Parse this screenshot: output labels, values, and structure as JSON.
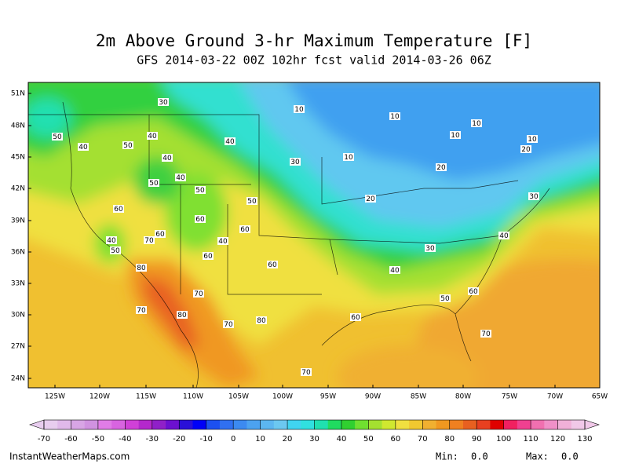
{
  "header": {
    "title": "2m Above Ground 3-hr Maximum Temperature [F]",
    "subtitle": "GFS 2014-03-22 00Z 102hr fcst valid 2014-03-26 06Z"
  },
  "map": {
    "lat_labels": [
      "51N",
      "48N",
      "45N",
      "42N",
      "39N",
      "36N",
      "33N",
      "30N",
      "27N",
      "24N"
    ],
    "lon_labels": [
      "125W",
      "120W",
      "115W",
      "110W",
      "105W",
      "100W",
      "95W",
      "90W",
      "85W",
      "80W",
      "75W",
      "70W",
      "65W"
    ],
    "contour_labels": [
      30,
      10,
      10,
      10,
      10,
      10,
      20,
      50,
      40,
      50,
      40,
      40,
      40,
      30,
      10,
      20,
      50,
      40,
      50,
      50,
      20,
      30,
      60,
      60,
      60,
      70,
      40,
      50,
      40,
      60,
      40,
      30,
      60,
      80,
      60,
      40,
      70,
      50,
      60,
      70,
      80,
      70,
      80,
      60,
      70,
      70
    ]
  },
  "colorbar": {
    "ticks": [
      -70,
      -60,
      -50,
      -40,
      -30,
      -20,
      -10,
      0,
      10,
      20,
      30,
      40,
      50,
      60,
      70,
      80,
      90,
      100,
      110,
      120,
      130
    ],
    "colors": [
      "#e8cdef",
      "#e0b9ea",
      "#d8a5e5",
      "#d092e0",
      "#e07ce6",
      "#d864e0",
      "#d040d8",
      "#b428cc",
      "#9020c8",
      "#6c10d0",
      "#2a10d8",
      "#0000f8",
      "#1c50f0",
      "#3070f0",
      "#3c8af0",
      "#4ca2f0",
      "#5cb6f0",
      "#6cc8f0",
      "#40d4f0",
      "#30e0e0",
      "#20e0b0",
      "#20dc60",
      "#30d030",
      "#70e030",
      "#a4e030",
      "#d0e830",
      "#f0e040",
      "#f0c830",
      "#f0b030",
      "#f09820",
      "#f08020",
      "#e86020",
      "#e84020",
      "#e00000",
      "#f02060",
      "#f04090",
      "#f070b0",
      "#f090c8",
      "#f0b0d8",
      "#f0c8e8"
    ]
  },
  "footer": {
    "site": "InstantWeatherMaps.com",
    "min_label": "Min:",
    "min_value": "0.0",
    "max_label": "Max:",
    "max_value": "0.0"
  }
}
